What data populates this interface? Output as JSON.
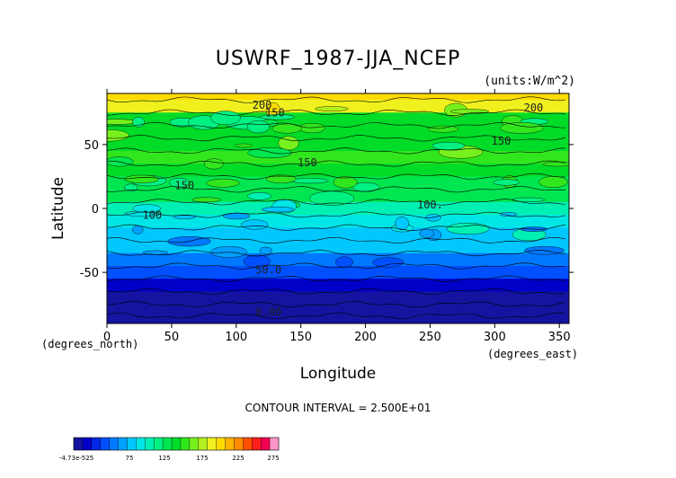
{
  "chart_data": {
    "type": "heatmap",
    "title": "USWRF_1987-JJA_NCEP",
    "units": "(units:W/m^2)",
    "xlabel": "Longitude",
    "ylabel": "Latitude",
    "x_unit_label": "(degrees_east)",
    "y_unit_label": "(degrees_north)",
    "xlim": [
      0,
      357.5
    ],
    "ylim": [
      -90,
      90
    ],
    "x_ticks": [
      "0",
      "50",
      "100",
      "150",
      "200",
      "250",
      "300",
      "350"
    ],
    "y_ticks": [
      "50",
      "0",
      "-50"
    ],
    "contour_interval_text": "CONTOUR INTERVAL = 2.500E+01",
    "contour_labels": [
      {
        "text": "200",
        "x": 120,
        "y": 78
      },
      {
        "text": "150",
        "x": 130,
        "y": 72
      },
      {
        "text": "200",
        "x": 330,
        "y": 76
      },
      {
        "text": "150",
        "x": 305,
        "y": 50
      },
      {
        "text": "150",
        "x": 155,
        "y": 33
      },
      {
        "text": "150",
        "x": 60,
        "y": 15
      },
      {
        "text": "100",
        "x": 35,
        "y": -8
      },
      {
        "text": "100.",
        "x": 250,
        "y": 0
      },
      {
        "text": "50.0",
        "x": 125,
        "y": -51
      },
      {
        "text": "0.00",
        "x": 125,
        "y": -84
      }
    ],
    "zonal_profile": [
      {
        "lat": 90,
        "value": 210
      },
      {
        "lat": 80,
        "value": 190
      },
      {
        "lat": 70,
        "value": 140
      },
      {
        "lat": 60,
        "value": 140
      },
      {
        "lat": 50,
        "value": 145
      },
      {
        "lat": 40,
        "value": 150
      },
      {
        "lat": 30,
        "value": 140
      },
      {
        "lat": 20,
        "value": 135
      },
      {
        "lat": 10,
        "value": 130
      },
      {
        "lat": 0,
        "value": 110
      },
      {
        "lat": -10,
        "value": 95
      },
      {
        "lat": -20,
        "value": 85
      },
      {
        "lat": -30,
        "value": 80
      },
      {
        "lat": -40,
        "value": 60
      },
      {
        "lat": -50,
        "value": 40
      },
      {
        "lat": -60,
        "value": 15
      },
      {
        "lat": -70,
        "value": 5
      },
      {
        "lat": -80,
        "value": 2
      },
      {
        "lat": -88,
        "value": 0
      }
    ],
    "colorbar": {
      "colors": [
        "#1414a0",
        "#0000c8",
        "#0028e6",
        "#0050ff",
        "#0078ff",
        "#00a0ff",
        "#00c8ff",
        "#00e6e6",
        "#00f0b4",
        "#00f082",
        "#00e650",
        "#00dc28",
        "#32e61e",
        "#78f01e",
        "#b4f01e",
        "#f0f01e",
        "#ffdc00",
        "#ffb400",
        "#ff8c00",
        "#ff5000",
        "#ff1e1e",
        "#f00050",
        "#ff96c8"
      ],
      "tick_labels": [
        "-4.73e-525",
        "75",
        "125",
        "175",
        "225",
        "275"
      ]
    }
  }
}
